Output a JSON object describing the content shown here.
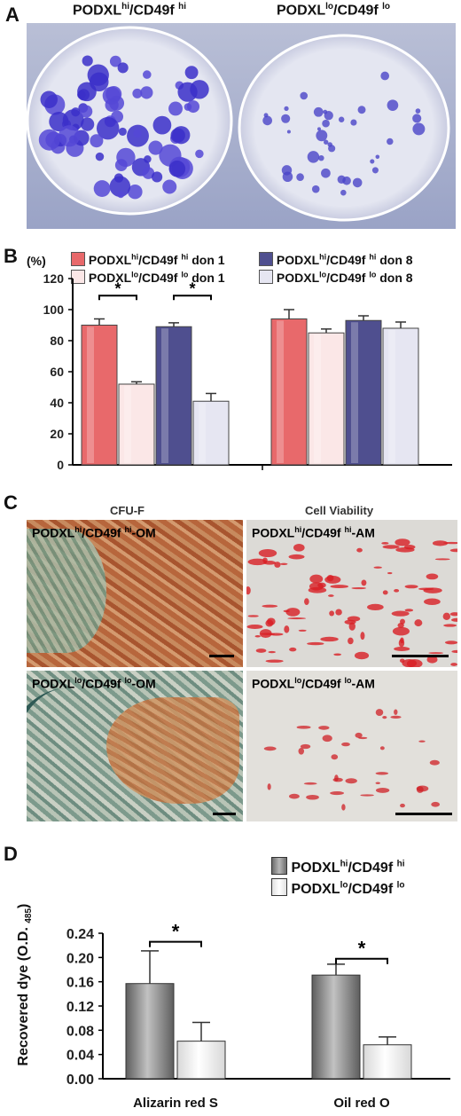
{
  "panels": {
    "A": {
      "letter": "A",
      "left_label": "PODXL",
      "left_sup": "hi",
      "left_mid": "/CD49f ",
      "left_sup2": "hi",
      "right_label": "PODXL",
      "right_sup": "lo",
      "right_mid": "/CD49f ",
      "right_sup2": "lo"
    },
    "B": {
      "letter": "B",
      "percent": "(%)",
      "legend": [
        {
          "pre": "PODXL",
          "sup": "hi",
          "post": "/CD49f ",
          "sup2": "hi",
          "tail": " don 1",
          "color": "#e8696b"
        },
        {
          "pre": "PODXL",
          "sup": "lo",
          "post": "/CD49f ",
          "sup2": "lo",
          "tail": " don 1",
          "color": "#fbe7e7"
        },
        {
          "pre": "PODXL",
          "sup": "hi",
          "post": "/CD49f ",
          "sup2": "hi",
          "tail": " don 8",
          "color": "#4f4f8f"
        },
        {
          "pre": "PODXL",
          "sup": "lo",
          "post": "/CD49f ",
          "sup2": "lo",
          "tail": " don 8",
          "color": "#e6e6f2"
        }
      ],
      "significance": [
        "*",
        "*"
      ]
    },
    "C": {
      "letter": "C",
      "col1": "CFU-F",
      "col2": "Cell Viability",
      "tl": {
        "pre": "PODXL",
        "sup": "hi",
        "post": "/CD49f ",
        "sup2": "hi",
        "tail": "-OM"
      },
      "tr": {
        "pre": "PODXL",
        "sup": "hi",
        "post": "/CD49f ",
        "sup2": "hi",
        "tail": "-AM"
      },
      "bl": {
        "pre": "PODXL",
        "sup": "lo",
        "post": "/CD49f ",
        "sup2": "lo",
        "tail": "-OM"
      },
      "br": {
        "pre": "PODXL",
        "sup": "lo",
        "post": "/CD49f ",
        "sup2": "lo",
        "tail": "-AM"
      }
    },
    "D": {
      "letter": "D",
      "ylabel_main": "Recovered dye (O.D. ",
      "ylabel_sub": "485",
      "ylabel_end": ")",
      "legend": [
        {
          "pre": "PODXL",
          "sup": "hi",
          "post": "/CD49f ",
          "sup2": "hi"
        },
        {
          "pre": "PODXL",
          "sup": "lo",
          "post": "/CD49f ",
          "sup2": "lo"
        }
      ],
      "significance": [
        "*",
        "*"
      ]
    }
  },
  "chart_data": [
    {
      "type": "bar",
      "panel": "B",
      "title": "",
      "xlabel": "",
      "ylabel": "(%)",
      "ylim": [
        0,
        120
      ],
      "yticks": [
        0,
        20,
        40,
        60,
        80,
        100,
        120
      ],
      "groups": 2,
      "series": [
        {
          "values": [
            90,
            94
          ],
          "errors": [
            4,
            6
          ],
          "color": "#e8696b"
        },
        {
          "values": [
            52,
            85
          ],
          "errors": [
            1.5,
            2.5
          ],
          "color": "#fbe7e7"
        },
        {
          "values": [
            89,
            93
          ],
          "errors": [
            2.5,
            3
          ],
          "color": "#4f4f8f"
        },
        {
          "values": [
            41,
            88
          ],
          "errors": [
            5,
            4
          ],
          "color": "#e6e6f2"
        }
      ]
    },
    {
      "type": "bar",
      "panel": "D",
      "title": "",
      "xlabel": "",
      "ylabel": "Recovered dye (O.D. 485)",
      "categories": [
        "Alizarin red S",
        "Oil red O"
      ],
      "ylim": [
        0,
        0.24
      ],
      "yticks": [
        "0.00",
        "0.04",
        "0.08",
        "0.12",
        "0.16",
        "0.20",
        "0.24"
      ],
      "series": [
        {
          "values": [
            0.157,
            0.171
          ],
          "errors": [
            0.054,
            0.018
          ],
          "color": "#8a8a8a"
        },
        {
          "values": [
            0.062,
            0.056
          ],
          "errors": [
            0.031,
            0.013
          ],
          "color": "#f4f4f4"
        }
      ]
    }
  ]
}
